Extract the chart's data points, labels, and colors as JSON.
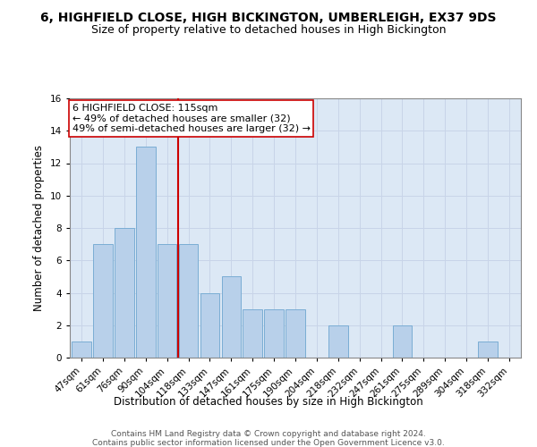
{
  "title": "6, HIGHFIELD CLOSE, HIGH BICKINGTON, UMBERLEIGH, EX37 9DS",
  "subtitle": "Size of property relative to detached houses in High Bickington",
  "xlabel": "Distribution of detached houses by size in High Bickington",
  "ylabel": "Number of detached properties",
  "categories": [
    "47sqm",
    "61sqm",
    "76sqm",
    "90sqm",
    "104sqm",
    "118sqm",
    "133sqm",
    "147sqm",
    "161sqm",
    "175sqm",
    "190sqm",
    "204sqm",
    "218sqm",
    "232sqm",
    "247sqm",
    "261sqm",
    "275sqm",
    "289sqm",
    "304sqm",
    "318sqm",
    "332sqm"
  ],
  "values": [
    1,
    7,
    8,
    13,
    7,
    7,
    4,
    5,
    3,
    3,
    3,
    0,
    2,
    0,
    0,
    2,
    0,
    0,
    0,
    1,
    0
  ],
  "bar_color": "#b8d0ea",
  "bar_edge_color": "#7aadd4",
  "vline_x": 4.5,
  "vline_color": "#cc0000",
  "annotation_text": "6 HIGHFIELD CLOSE: 115sqm\n← 49% of detached houses are smaller (32)\n49% of semi-detached houses are larger (32) →",
  "annotation_box_color": "#ffffff",
  "annotation_box_edge": "#cc0000",
  "ylim": [
    0,
    16
  ],
  "yticks": [
    0,
    2,
    4,
    6,
    8,
    10,
    12,
    14,
    16
  ],
  "grid_color": "#c8d4e8",
  "bg_color": "#dce8f5",
  "footer1": "Contains HM Land Registry data © Crown copyright and database right 2024.",
  "footer2": "Contains public sector information licensed under the Open Government Licence v3.0.",
  "title_fontsize": 10,
  "subtitle_fontsize": 9,
  "xlabel_fontsize": 8.5,
  "ylabel_fontsize": 8.5,
  "tick_fontsize": 7.5,
  "footer_fontsize": 6.5,
  "annotation_fontsize": 8
}
